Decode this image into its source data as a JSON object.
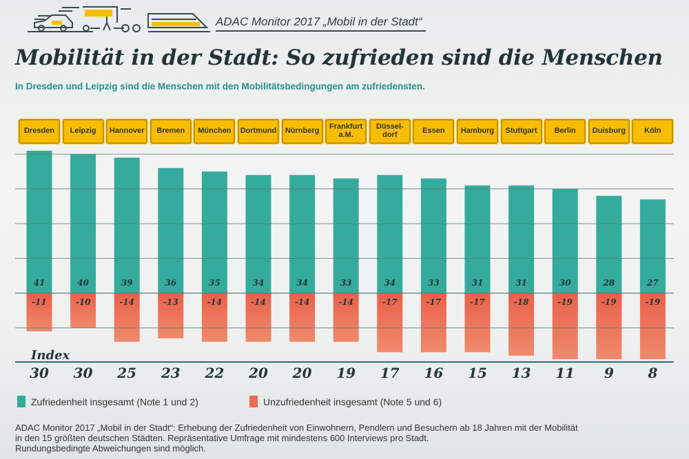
{
  "header": {
    "brand": "ADAC Monitor 2017 „Mobil in der Stadt“"
  },
  "title": "Mobilität in der Stadt: So zufrieden sind die Menschen",
  "subtitle": "In Dresden und Leipzig sind die Menschen mit den Mobilitätsbedingungen am zufriedensten.",
  "chart_data": {
    "type": "bar",
    "categories": [
      "Dresden",
      "Leipzig",
      "Hannover",
      "Bremen",
      "München",
      "Dortmund",
      "Nürnberg",
      "Frankfurt\na.M.",
      "Düssel-\ndorf",
      "Essen",
      "Hamburg",
      "Stuttgart",
      "Berlin",
      "Duisburg",
      "Köln"
    ],
    "series": [
      {
        "name": "Zufriedenheit insgesamt (Note 1 und 2)",
        "color": "#35ab9d",
        "values": [
          41,
          40,
          39,
          36,
          35,
          34,
          34,
          33,
          34,
          33,
          31,
          31,
          30,
          28,
          27
        ]
      },
      {
        "name": "Unzufriedenheit insgesamt (Note 5 und 6)",
        "color": "#ea6b50",
        "values": [
          -11,
          -10,
          -14,
          -13,
          -14,
          -14,
          -14,
          -14,
          -17,
          -17,
          -17,
          -18,
          -19,
          -19,
          -19
        ]
      }
    ],
    "index_label": "Index",
    "index": [
      30,
      30,
      25,
      23,
      22,
      20,
      20,
      19,
      17,
      16,
      15,
      13,
      11,
      9,
      8
    ],
    "ylim": [
      -20,
      42
    ],
    "grid": true
  },
  "footnote": [
    "ADAC Monitor 2017 „Mobil in der Stadt“: Erhebung der Zufriedenheit von Einwohnern, Pendlern und Besuchern ab 18 Jahren mit der Mobilität",
    "in den 15 größten deutschen Städten. Repräsentative Umfrage mit mindestens 600 Interviews pro Stadt.",
    "Rundungsbedingte Abweichungen sind möglich."
  ]
}
